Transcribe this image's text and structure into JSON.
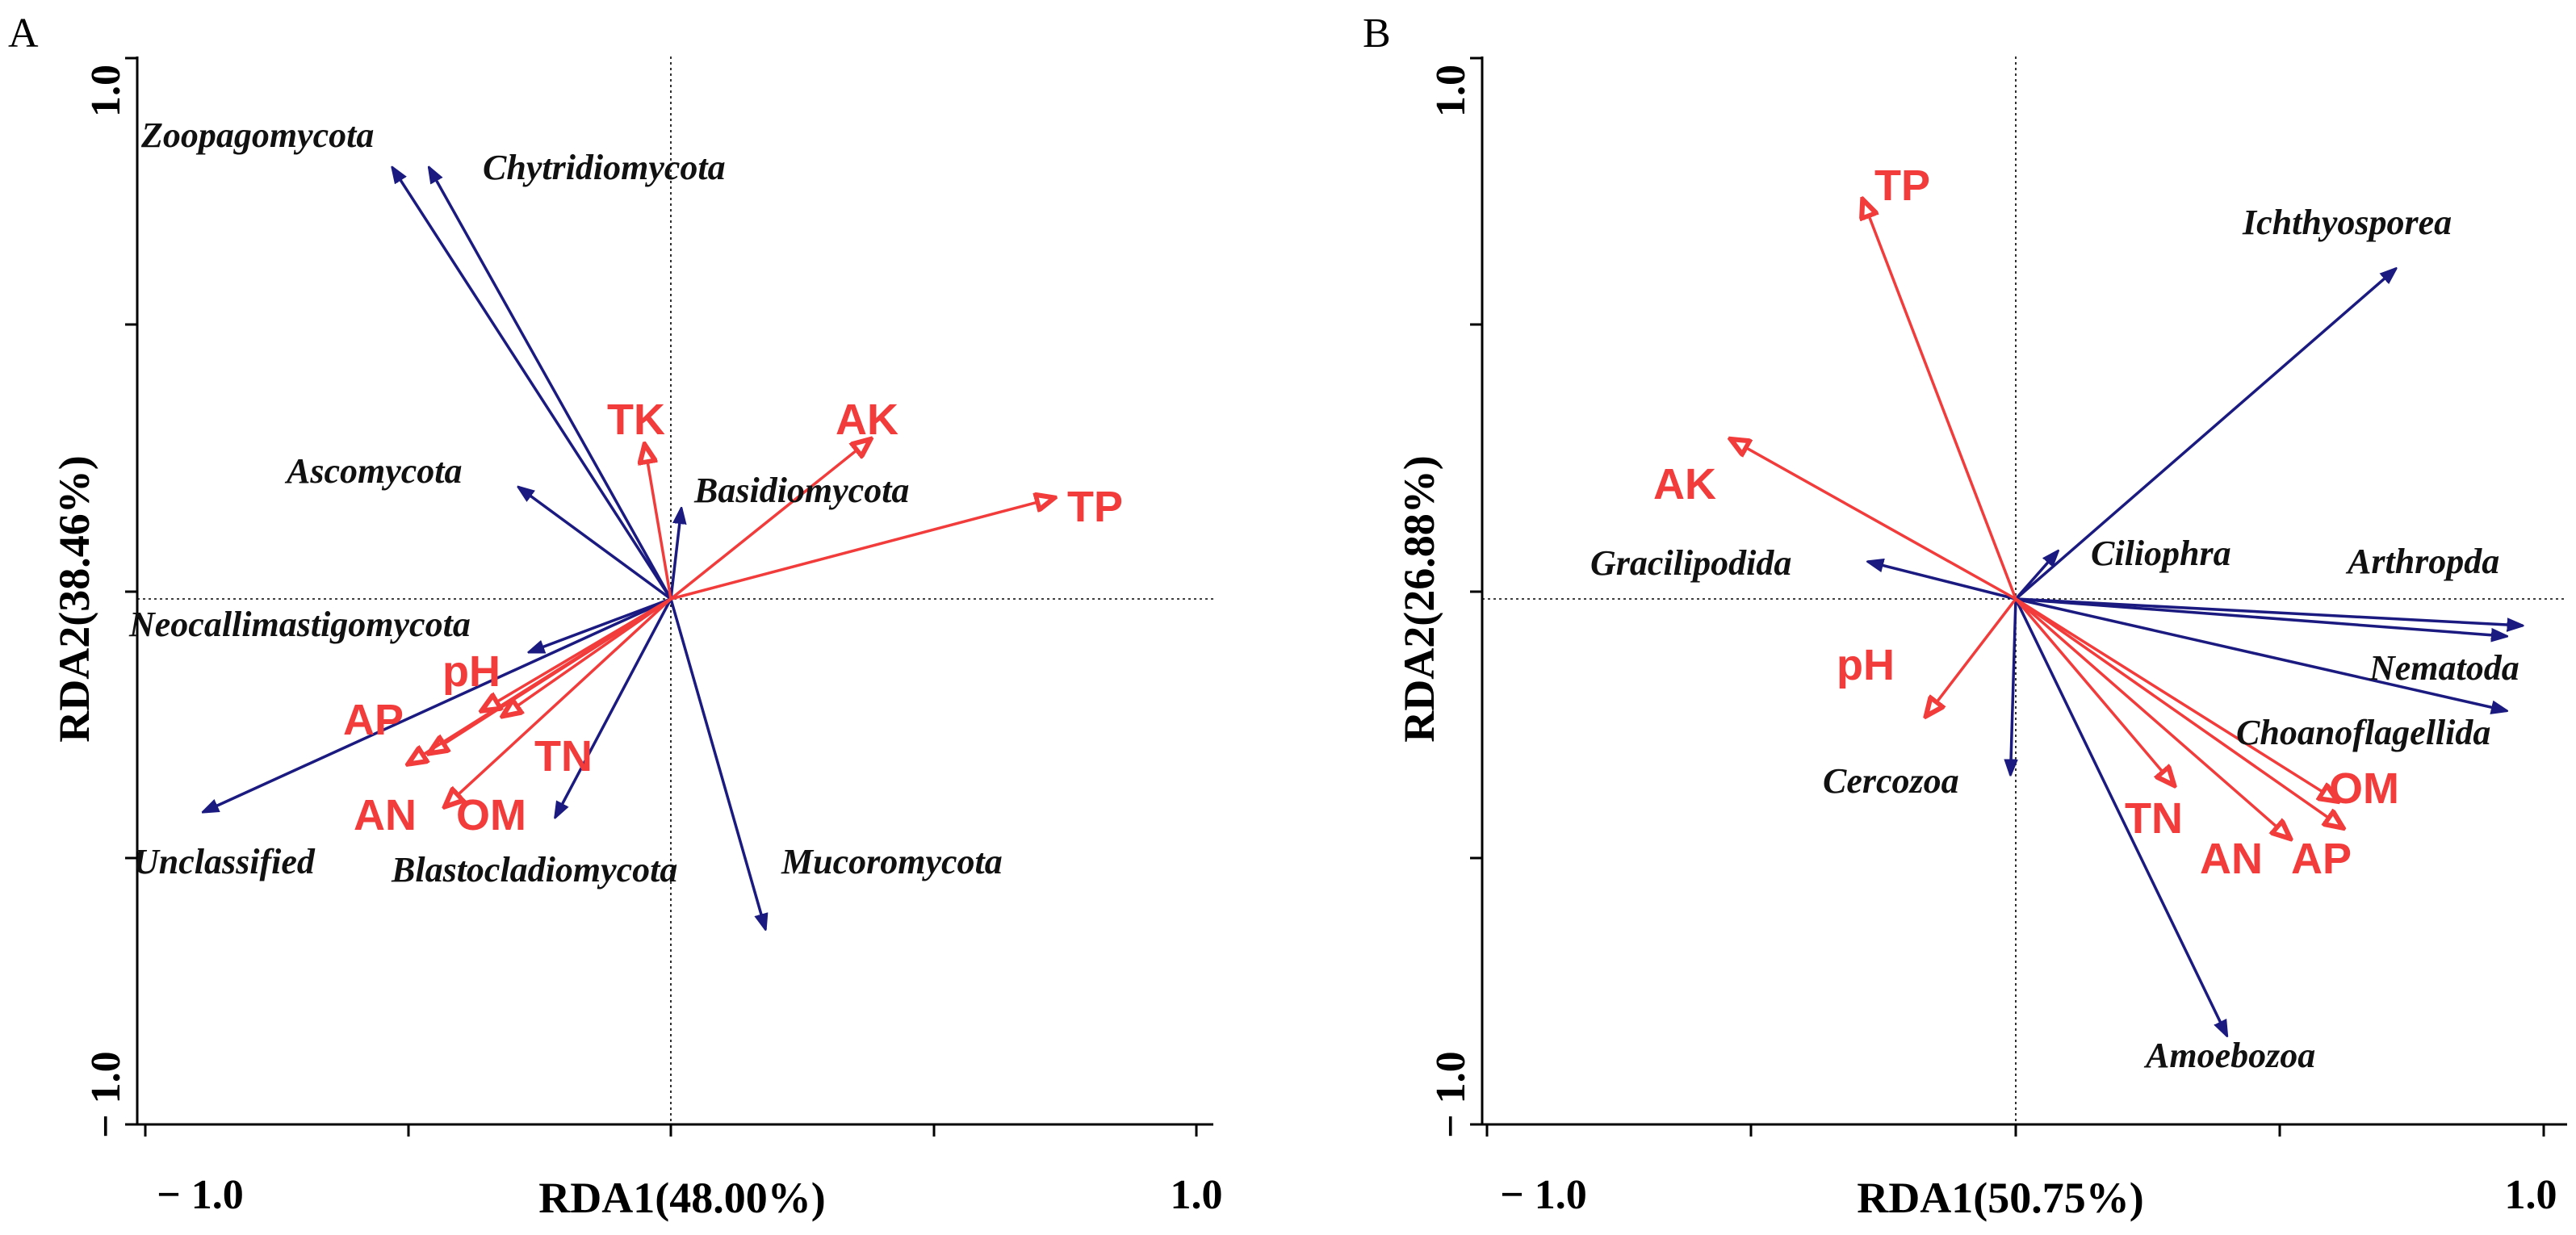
{
  "chart_data": [
    {
      "type": "scatter",
      "panel": "A",
      "xlabel": "RDA1(48.00%)",
      "ylabel": "RDA2(38.46%)",
      "xlim": [
        -1.0,
        1.0
      ],
      "ylim": [
        -1.0,
        1.0
      ],
      "xtick_labels": [
        "− 1.0",
        "1.0"
      ],
      "ytick_labels": [
        "1.0",
        "− 1.0"
      ],
      "species": [
        {
          "name": "Zoopagomycota",
          "x": -0.53,
          "y": 0.81
        },
        {
          "name": "Chytridiomycota",
          "x": -0.46,
          "y": 0.81
        },
        {
          "name": "Ascomycota",
          "x": -0.29,
          "y": 0.21
        },
        {
          "name": "Basidiomycota",
          "x": 0.02,
          "y": 0.17
        },
        {
          "name": "Neocallimastigomycota",
          "x": -0.27,
          "y": -0.1
        },
        {
          "name": "Unclassified",
          "x": -0.89,
          "y": -0.4
        },
        {
          "name": "Blastocladiomycota",
          "x": -0.22,
          "y": -0.41
        },
        {
          "name": "Mucoromycota",
          "x": 0.18,
          "y": -0.62
        }
      ],
      "environment": [
        {
          "name": "TK",
          "x": -0.05,
          "y": 0.29
        },
        {
          "name": "AK",
          "x": 0.38,
          "y": 0.3
        },
        {
          "name": "TP",
          "x": 0.73,
          "y": 0.19
        },
        {
          "name": "pH",
          "x": -0.36,
          "y": -0.21
        },
        {
          "name": "AP",
          "x": -0.46,
          "y": -0.29
        },
        {
          "name": "AN",
          "x": -0.5,
          "y": -0.31
        },
        {
          "name": "OM",
          "x": -0.43,
          "y": -0.39
        },
        {
          "name": "TN",
          "x": -0.32,
          "y": -0.22
        }
      ]
    },
    {
      "type": "scatter",
      "panel": "B",
      "xlabel": "RDA1(50.75%)",
      "ylabel": "RDA2(26.88%)",
      "xlim": [
        -1.0,
        1.0
      ],
      "ylim": [
        -1.0,
        1.0
      ],
      "xtick_labels": [
        "− 1.0",
        "1.0"
      ],
      "ytick_labels": [
        "1.0",
        "− 1.0"
      ],
      "species": [
        {
          "name": "Ichthyosporea",
          "x": 0.72,
          "y": 0.62
        },
        {
          "name": "Ciliophra",
          "x": 0.08,
          "y": 0.09
        },
        {
          "name": "Gracilipodida",
          "x": -0.28,
          "y": 0.07
        },
        {
          "name": "Arthropda",
          "x": 0.96,
          "y": -0.05
        },
        {
          "name": "Nematoda",
          "x": 0.93,
          "y": -0.07
        },
        {
          "name": "Choanoflagellida",
          "x": 0.93,
          "y": -0.21
        },
        {
          "name": "Cercozoa",
          "x": -0.01,
          "y": -0.33
        },
        {
          "name": "Amoebozoa",
          "x": 0.4,
          "y": -0.82
        }
      ],
      "environment": [
        {
          "name": "TP",
          "x": -0.29,
          "y": 0.75
        },
        {
          "name": "AK",
          "x": -0.54,
          "y": 0.3
        },
        {
          "name": "pH",
          "x": -0.17,
          "y": -0.22
        },
        {
          "name": "TN",
          "x": 0.3,
          "y": -0.35
        },
        {
          "name": "AN",
          "x": 0.52,
          "y": -0.45
        },
        {
          "name": "OM",
          "x": 0.61,
          "y": -0.38
        },
        {
          "name": "AP",
          "x": 0.62,
          "y": -0.43
        }
      ]
    }
  ]
}
